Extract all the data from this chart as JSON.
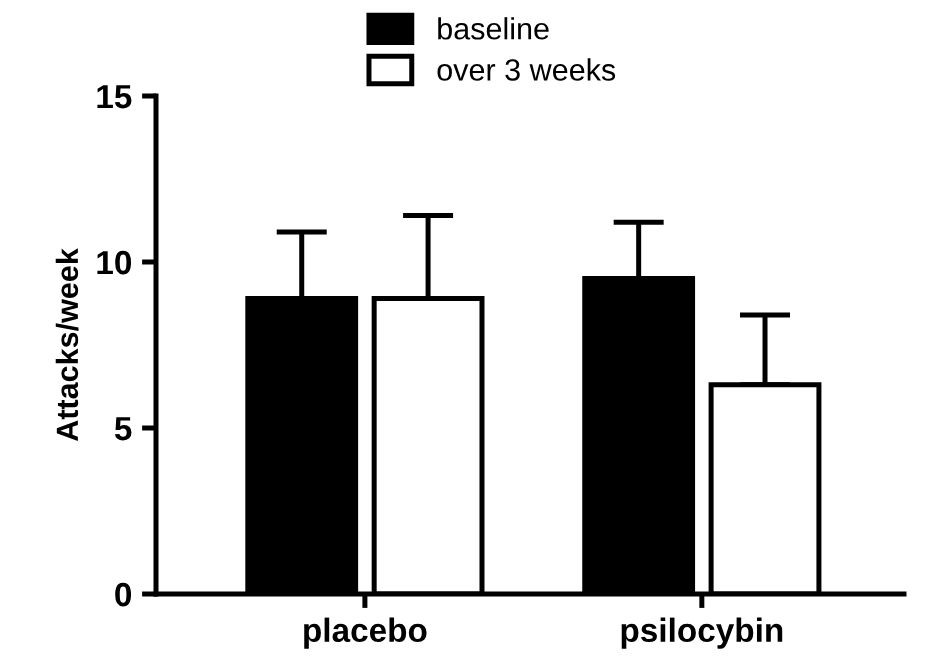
{
  "chart_data": {
    "type": "bar",
    "ylabel": "Attacks/week",
    "categories": [
      "placebo",
      "psilocybin"
    ],
    "series": [
      {
        "name": "baseline",
        "color": "#000000",
        "values": [
          8.9,
          9.5
        ],
        "errors": [
          [
            8.9,
            10.9
          ],
          [
            9.5,
            11.2
          ]
        ]
      },
      {
        "name": "over 3 weeks",
        "color": "#ffffff",
        "values": [
          8.9,
          6.3
        ],
        "errors": [
          [
            8.9,
            11.4
          ],
          [
            6.3,
            8.4
          ]
        ]
      }
    ],
    "ylim": [
      0,
      15
    ],
    "yticks": [
      0,
      5,
      10,
      15
    ],
    "grid": false,
    "legend": "top"
  }
}
